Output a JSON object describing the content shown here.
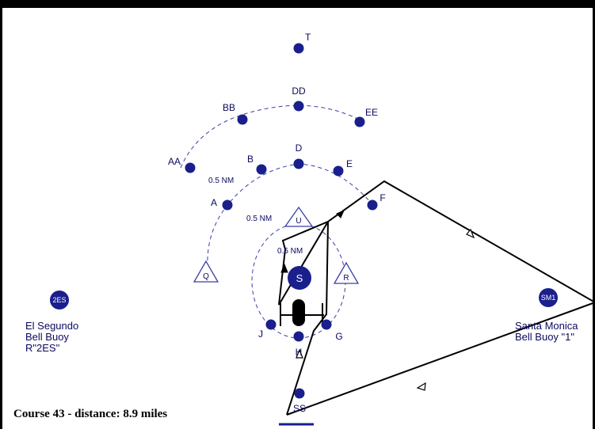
{
  "caption": "Course 43 - distance: 8.9 miles",
  "colors": {
    "mark": "#1a1f8c",
    "arc": "#3a3fa8",
    "course": "#000000",
    "label": "#0a0a5e"
  },
  "marks": [
    {
      "id": "T",
      "label": "T"
    },
    {
      "id": "DD",
      "label": "DD"
    },
    {
      "id": "BB",
      "label": "BB"
    },
    {
      "id": "EE",
      "label": "EE"
    },
    {
      "id": "AA",
      "label": "AA"
    },
    {
      "id": "D",
      "label": "D"
    },
    {
      "id": "B",
      "label": "B"
    },
    {
      "id": "E",
      "label": "E"
    },
    {
      "id": "A",
      "label": "A"
    },
    {
      "id": "F",
      "label": "F"
    },
    {
      "id": "J",
      "label": "J"
    },
    {
      "id": "G",
      "label": "G"
    },
    {
      "id": "H",
      "label": "H"
    },
    {
      "id": "SS",
      "label": "SS"
    }
  ],
  "triangles": [
    {
      "id": "U",
      "label": "U"
    },
    {
      "id": "Q",
      "label": "Q"
    },
    {
      "id": "R",
      "label": "R"
    }
  ],
  "distance_labels": [
    "0.5 NM",
    "0.5 NM",
    "0.5 NM"
  ],
  "committee_boat": {
    "label": "S"
  },
  "buoys": [
    {
      "id": "2ES",
      "badge": "2ES",
      "lines": [
        "El Segundo",
        "Bell Buoy",
        "R\"2ES\""
      ]
    },
    {
      "id": "SM1",
      "badge": "SM1",
      "lines": [
        "Santa Monica",
        "Bell Buoy \"1\""
      ]
    }
  ]
}
